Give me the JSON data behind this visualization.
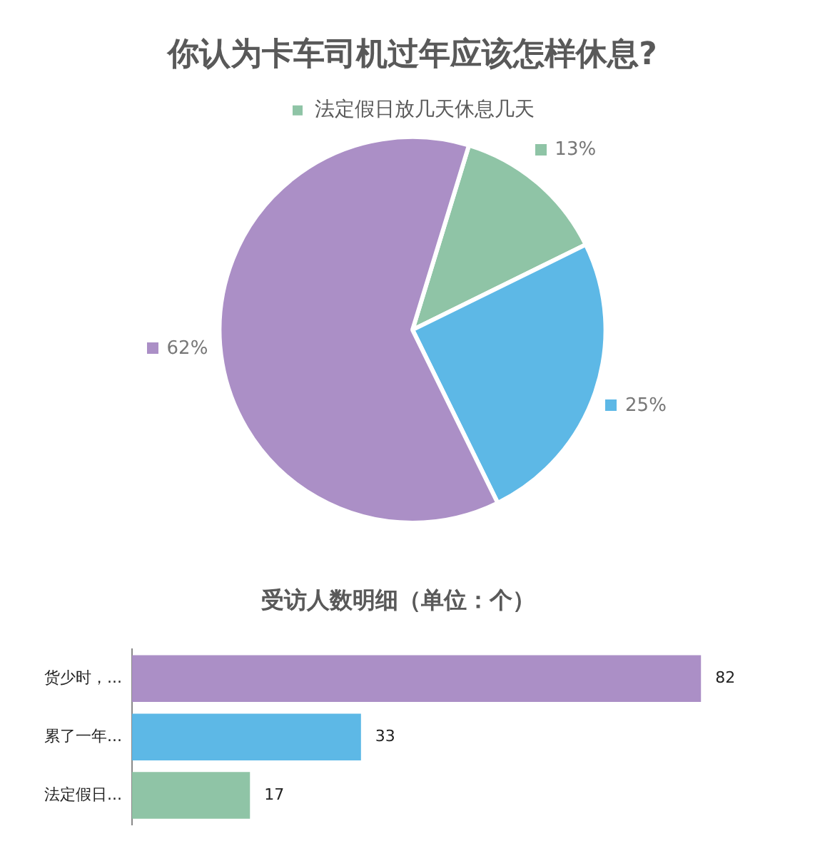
{
  "chart_data": [
    {
      "type": "pie",
      "title": "你认为卡车司机过年应该怎样休息?",
      "categories": [
        "法定假日放几天休息几天",
        null,
        null
      ],
      "values": [
        13,
        25,
        62
      ],
      "value_labels": [
        "13%",
        "25%",
        "62%"
      ],
      "colors": [
        "#8fc4a6",
        "#5db8e6",
        "#ab8fc6"
      ],
      "legend": "top"
    },
    {
      "type": "bar",
      "orientation": "horizontal",
      "title": "受访人数明细（单位：个）",
      "categories": [
        "货少时，...",
        "累了一年...",
        "法定假日..."
      ],
      "values": [
        82,
        33,
        17
      ],
      "colors": [
        "#ab8fc6",
        "#5db8e6",
        "#8fc4a6"
      ],
      "data_labels": true,
      "tick_labels": "y"
    }
  ]
}
